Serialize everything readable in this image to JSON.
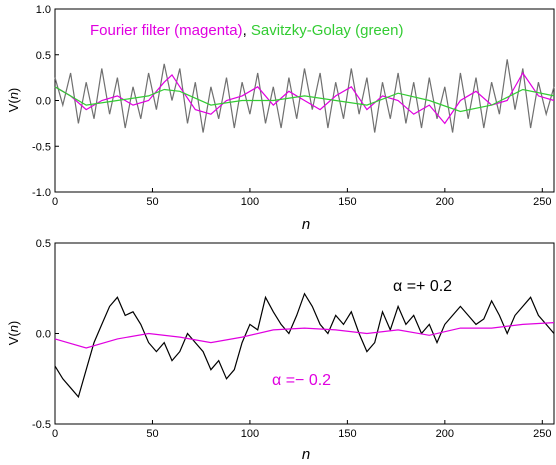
{
  "chart_data": [
    {
      "type": "line",
      "ylabel_prefix": "V(",
      "ylabel_var": "n",
      "ylabel_suffix": ")",
      "xlabel": "n",
      "xlim": [
        0,
        256
      ],
      "ylim": [
        -1.0,
        1.0
      ],
      "xticks": [
        "0",
        "50",
        "100",
        "150",
        "200",
        "250"
      ],
      "yticks": [
        "1.0",
        "0.5",
        "0.0",
        "-0.5",
        "-1.0"
      ],
      "legend": {
        "part1": "Fourier filter (magenta)",
        "sep": ", ",
        "part2": "Savitzky-Golay (green)"
      },
      "colors": {
        "raw": "#707070",
        "fourier": "#e000e0",
        "savgol": "#33cc33",
        "legend_magenta": "#e000e0",
        "legend_green": "#33cc33"
      },
      "series": [
        {
          "color": "raw",
          "x": [
            0,
            4,
            8,
            12,
            16,
            20,
            24,
            28,
            32,
            36,
            40,
            44,
            48,
            52,
            56,
            60,
            64,
            68,
            72,
            76,
            80,
            84,
            88,
            92,
            96,
            100,
            104,
            108,
            112,
            116,
            120,
            124,
            128,
            132,
            136,
            140,
            144,
            148,
            152,
            156,
            160,
            164,
            168,
            172,
            176,
            180,
            184,
            188,
            192,
            196,
            200,
            204,
            208,
            212,
            216,
            220,
            224,
            228,
            232,
            236,
            240,
            244,
            248,
            252,
            256
          ],
          "y": [
            0.25,
            -0.05,
            0.3,
            -0.25,
            0.2,
            -0.2,
            0.35,
            -0.15,
            0.25,
            -0.3,
            0.15,
            -0.2,
            0.3,
            -0.1,
            0.4,
            0.0,
            0.35,
            -0.25,
            0.2,
            -0.35,
            0.15,
            -0.2,
            0.25,
            -0.3,
            0.2,
            -0.15,
            0.3,
            -0.25,
            0.15,
            -0.3,
            0.25,
            -0.2,
            0.35,
            -0.1,
            0.3,
            -0.3,
            0.2,
            -0.2,
            0.35,
            -0.15,
            0.25,
            -0.35,
            0.2,
            -0.2,
            0.3,
            -0.25,
            0.2,
            -0.3,
            0.25,
            -0.2,
            0.15,
            -0.35,
            0.3,
            -0.2,
            0.25,
            -0.3,
            0.2,
            -0.15,
            0.45,
            -0.1,
            0.35,
            -0.3,
            0.2,
            -0.15,
            0.15
          ]
        },
        {
          "color": "fourier",
          "x": [
            0,
            8,
            16,
            24,
            32,
            40,
            48,
            56,
            60,
            64,
            72,
            80,
            88,
            96,
            104,
            112,
            120,
            128,
            136,
            144,
            152,
            160,
            168,
            176,
            184,
            192,
            200,
            208,
            216,
            224,
            232,
            240,
            248,
            256
          ],
          "y": [
            0.15,
            0.05,
            -0.1,
            0.0,
            0.05,
            -0.05,
            0.0,
            0.2,
            0.28,
            0.15,
            -0.1,
            -0.15,
            0.0,
            0.05,
            0.15,
            -0.05,
            0.1,
            0.0,
            -0.1,
            0.05,
            0.15,
            -0.1,
            0.05,
            0.0,
            -0.15,
            -0.05,
            -0.25,
            0.0,
            0.1,
            -0.05,
            0.0,
            0.3,
            0.05,
            0.0
          ]
        },
        {
          "color": "savgol",
          "x": [
            0,
            16,
            32,
            48,
            56,
            64,
            80,
            96,
            112,
            128,
            144,
            160,
            176,
            192,
            208,
            224,
            240,
            256
          ],
          "y": [
            0.15,
            -0.05,
            0.0,
            0.05,
            0.12,
            0.1,
            -0.05,
            0.0,
            0.0,
            0.05,
            0.0,
            -0.05,
            0.08,
            0.0,
            -0.12,
            -0.05,
            0.12,
            0.05
          ]
        }
      ]
    },
    {
      "type": "line",
      "ylabel_prefix": "V(",
      "ylabel_var": "n",
      "ylabel_suffix": ")",
      "xlabel": "n",
      "xlim": [
        0,
        256
      ],
      "ylim": [
        -0.5,
        0.5
      ],
      "xticks": [
        "0",
        "50",
        "100",
        "150",
        "200",
        "250"
      ],
      "yticks": [
        "0.5",
        "0.0",
        "-0.5"
      ],
      "annotations": {
        "plus_sym": "α",
        "plus_rest": " =+ 0.2",
        "minus_sym": "α",
        "minus_rest": " =− 0.2"
      },
      "colors": {
        "plus": "#000000",
        "minus": "#e000e0"
      },
      "series": [
        {
          "color": "plus",
          "x": [
            0,
            4,
            8,
            12,
            16,
            20,
            24,
            28,
            32,
            36,
            40,
            44,
            48,
            52,
            56,
            60,
            64,
            68,
            72,
            76,
            80,
            84,
            88,
            92,
            96,
            100,
            104,
            108,
            112,
            116,
            120,
            124,
            128,
            132,
            136,
            140,
            144,
            148,
            152,
            156,
            160,
            164,
            168,
            172,
            176,
            180,
            184,
            188,
            192,
            196,
            200,
            204,
            208,
            212,
            216,
            220,
            224,
            228,
            232,
            236,
            240,
            244,
            248,
            252,
            256
          ],
          "y": [
            -0.18,
            -0.25,
            -0.3,
            -0.35,
            -0.2,
            -0.05,
            0.05,
            0.15,
            0.2,
            0.1,
            0.12,
            0.05,
            -0.05,
            -0.1,
            -0.05,
            -0.15,
            -0.1,
            0.0,
            -0.05,
            -0.1,
            -0.2,
            -0.15,
            -0.25,
            -0.2,
            -0.05,
            0.05,
            0.02,
            0.2,
            0.12,
            0.05,
            0.0,
            0.1,
            0.22,
            0.15,
            0.05,
            0.0,
            0.1,
            0.05,
            0.12,
            0.0,
            -0.1,
            -0.05,
            0.12,
            0.02,
            0.15,
            0.05,
            0.1,
            0.0,
            0.05,
            -0.05,
            0.05,
            0.1,
            0.15,
            0.1,
            0.05,
            0.08,
            0.18,
            0.1,
            0.0,
            0.1,
            0.15,
            0.2,
            0.1,
            0.05,
            0.0
          ]
        },
        {
          "color": "minus",
          "x": [
            0,
            16,
            32,
            48,
            64,
            80,
            96,
            112,
            128,
            144,
            160,
            176,
            192,
            208,
            224,
            240,
            256
          ],
          "y": [
            -0.03,
            -0.08,
            -0.03,
            0.0,
            -0.02,
            -0.05,
            -0.02,
            0.02,
            0.03,
            0.02,
            0.0,
            0.02,
            -0.01,
            0.03,
            0.03,
            0.05,
            0.06
          ]
        }
      ]
    }
  ]
}
